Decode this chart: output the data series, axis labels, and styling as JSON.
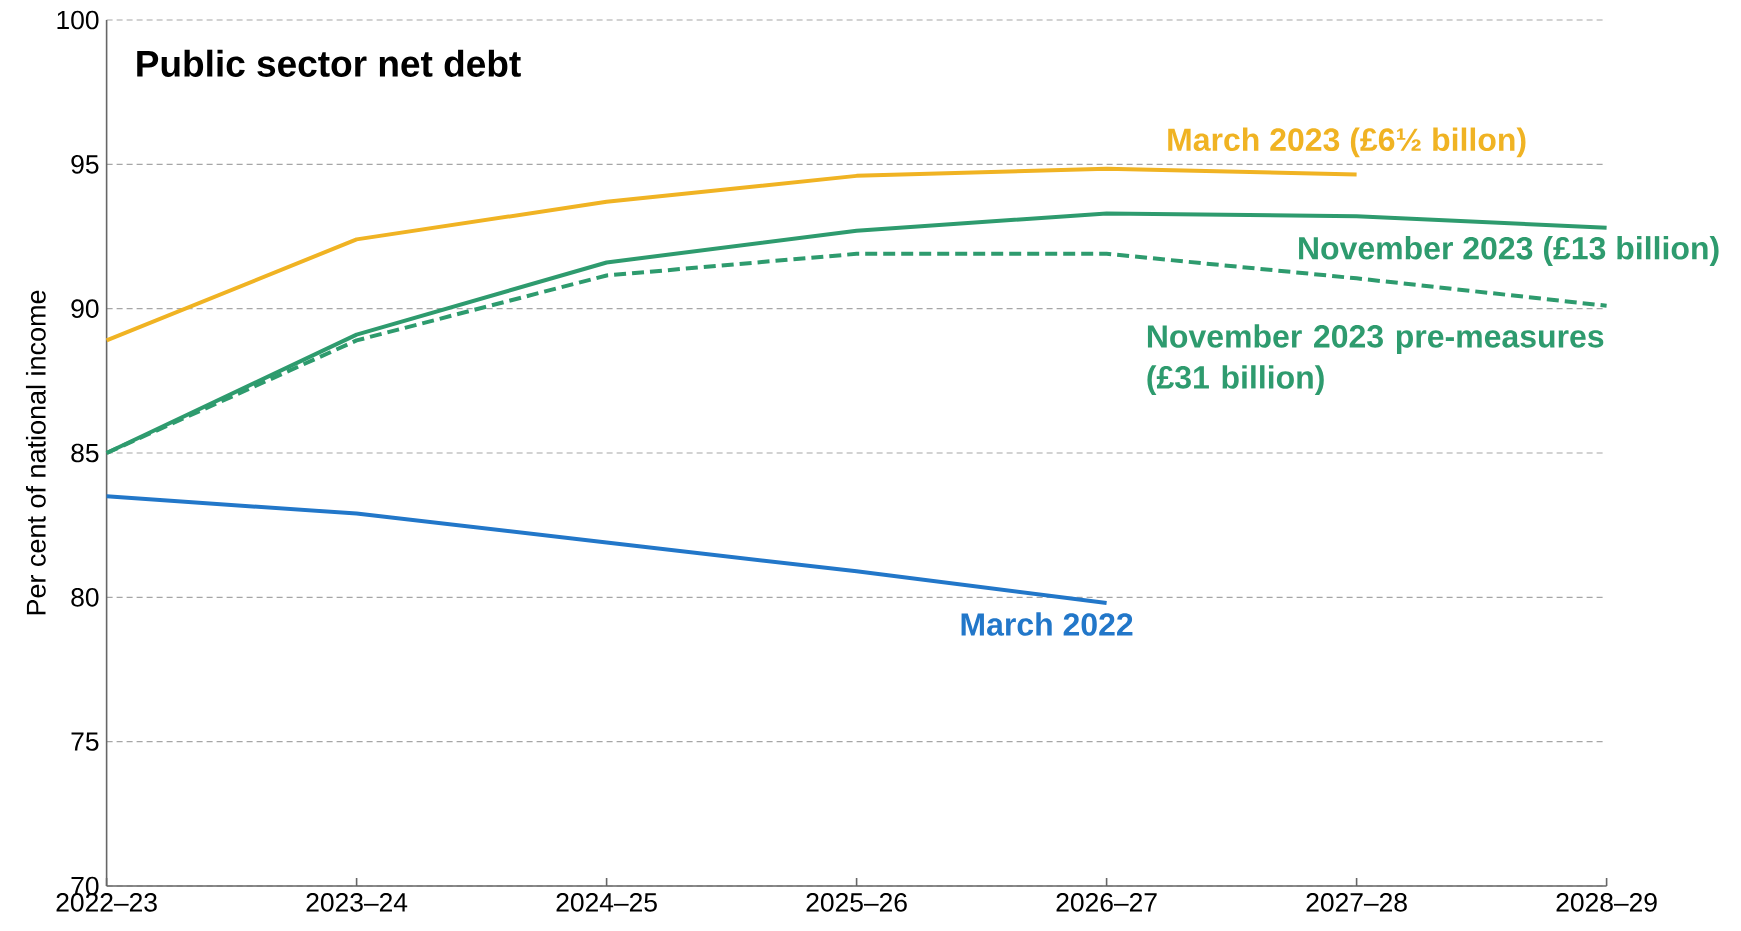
{
  "chart_data": {
    "type": "line",
    "title": "Public sector net debt",
    "ylabel": "Per cent of national income",
    "categories": [
      "2022–23",
      "2023–24",
      "2024–25",
      "2025–26",
      "2026–27",
      "2027–28",
      "2028–29"
    ],
    "series": [
      {
        "name": "March 2022",
        "color": "#2277c9",
        "line_style": "solid",
        "values": [
          83.5,
          82.9,
          81.9,
          80.9,
          79.8,
          null,
          null
        ]
      },
      {
        "name": "March 2023 (£6½ billon)",
        "color": "#f0b323",
        "line_style": "solid",
        "values": [
          88.9,
          92.4,
          93.7,
          94.6,
          94.85,
          94.65,
          null
        ]
      },
      {
        "name": "November 2023 (£13 billion)",
        "color": "#2e9b6e",
        "line_style": "solid",
        "values": [
          85.0,
          89.1,
          91.6,
          92.7,
          93.3,
          93.2,
          92.8
        ]
      },
      {
        "name": "November 2023 pre-measures (£31 billion)",
        "color": "#2e9b6e",
        "line_style": "dashed",
        "values": [
          85.0,
          88.9,
          91.15,
          91.9,
          91.9,
          91.05,
          90.1
        ]
      }
    ],
    "ylim": [
      70,
      100
    ],
    "yticks": [
      70,
      75,
      80,
      85,
      90,
      95,
      100
    ],
    "grid": "y"
  }
}
